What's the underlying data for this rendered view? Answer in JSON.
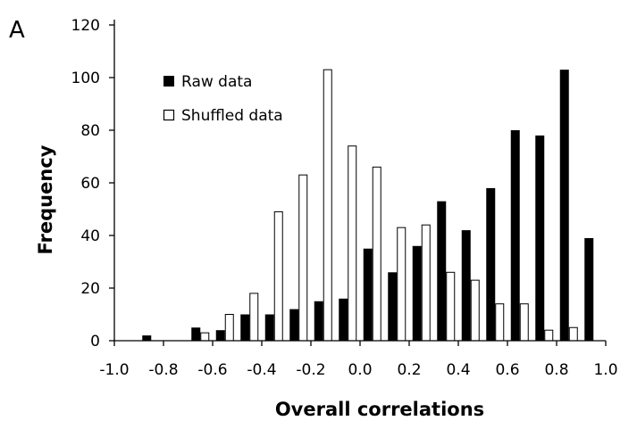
{
  "panel_label": "A",
  "chart_data": {
    "type": "bar",
    "xlabel": "Overall correlations",
    "ylabel": "Frequency",
    "ylim": [
      0,
      120
    ],
    "yticks": [
      0,
      20,
      40,
      60,
      80,
      100,
      120
    ],
    "xlim": [
      -1.0,
      1.0
    ],
    "xticks": [
      -1.0,
      -0.8,
      -0.6,
      -0.4,
      -0.2,
      0.0,
      0.2,
      0.4,
      0.6,
      0.8,
      1.0
    ],
    "xtick_labels": [
      "-1.0",
      "-0.8",
      "-0.6",
      "-0.4",
      "-0.2",
      "0.0",
      "0.2",
      "0.4",
      "0.6",
      "0.8",
      "1.0"
    ],
    "bin_centers": [
      -0.95,
      -0.85,
      -0.75,
      -0.65,
      -0.55,
      -0.45,
      -0.35,
      -0.25,
      -0.15,
      -0.05,
      0.05,
      0.15,
      0.25,
      0.35,
      0.45,
      0.55,
      0.65,
      0.75,
      0.85,
      0.95
    ],
    "legend_position": "top-left",
    "series": [
      {
        "name": "Raw data",
        "color": "#000000",
        "fill": "solid",
        "values": [
          0,
          2,
          0,
          5,
          4,
          10,
          10,
          12,
          15,
          16,
          35,
          26,
          36,
          53,
          42,
          58,
          80,
          78,
          103,
          39
        ]
      },
      {
        "name": "Shuffled data",
        "color": "#000000",
        "fill": "hollow",
        "values": [
          0,
          0,
          0,
          3,
          10,
          18,
          49,
          63,
          103,
          74,
          66,
          43,
          44,
          26,
          23,
          14,
          14,
          4,
          5,
          0
        ]
      }
    ]
  }
}
